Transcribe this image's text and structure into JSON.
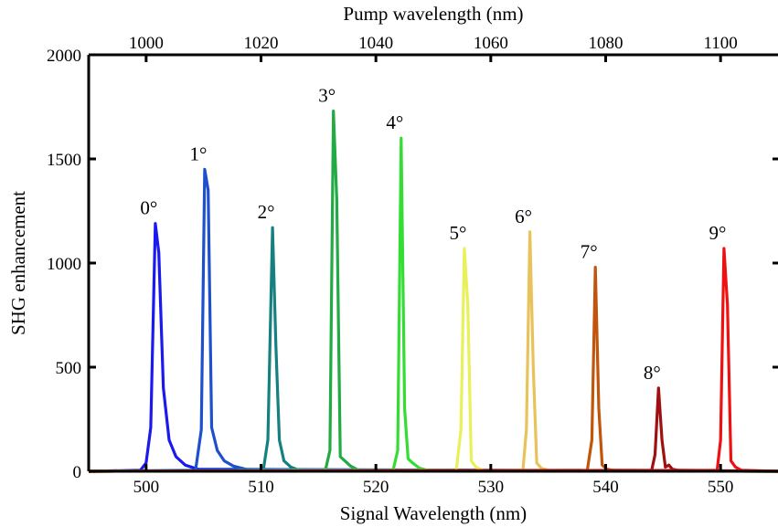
{
  "chart_data": {
    "type": "line",
    "title": "",
    "xlabel": "Signal Wavelength (nm)",
    "ylabel": "SHG enhancement",
    "x2label": "Pump wavelength (nm)",
    "xlim": [
      495,
      555
    ],
    "ylim": [
      0,
      2000
    ],
    "x2lim": [
      990,
      1110
    ],
    "xticks": [
      500,
      510,
      520,
      530,
      540,
      550
    ],
    "x2ticks": [
      1000,
      1020,
      1040,
      1060,
      1080,
      1100
    ],
    "yticks": [
      0,
      500,
      1000,
      1500,
      2000
    ],
    "grid": false,
    "legend": "none",
    "series": [
      {
        "label": "0°",
        "color": "#1a1aee",
        "x": [
          495,
          499.5,
          500.0,
          500.4,
          500.8,
          501.1,
          501.5,
          502.0,
          502.6,
          503.4,
          504.5,
          555
        ],
        "y": [
          0,
          5,
          40,
          210,
          1190,
          1050,
          400,
          150,
          70,
          30,
          10,
          0
        ]
      },
      {
        "label": "1°",
        "color": "#1e4fcc",
        "x": [
          495,
          504.3,
          504.8,
          505.1,
          505.4,
          505.7,
          506.2,
          506.8,
          507.6,
          508.8,
          555
        ],
        "y": [
          0,
          5,
          200,
          1450,
          1350,
          210,
          100,
          50,
          25,
          8,
          0
        ]
      },
      {
        "label": "2°",
        "color": "#168080",
        "x": [
          495,
          510.2,
          510.6,
          511.0,
          511.3,
          511.6,
          512.0,
          512.6,
          513.3,
          555
        ],
        "y": [
          0,
          5,
          150,
          1170,
          600,
          150,
          50,
          20,
          5,
          0
        ]
      },
      {
        "label": "3°",
        "color": "#22aa44",
        "x": [
          495,
          515.6,
          516.0,
          516.3,
          516.6,
          516.9,
          517.3,
          517.8,
          518.5,
          555
        ],
        "y": [
          0,
          5,
          100,
          1730,
          1300,
          70,
          50,
          25,
          5,
          0
        ]
      },
      {
        "label": "4°",
        "color": "#33dd33",
        "x": [
          495,
          521.5,
          521.9,
          522.2,
          522.5,
          522.8,
          523.2,
          523.8,
          524.5,
          555
        ],
        "y": [
          0,
          5,
          100,
          1600,
          300,
          60,
          40,
          15,
          5,
          0
        ]
      },
      {
        "label": "5°",
        "color": "#e8f05a",
        "x": [
          495,
          527.0,
          527.4,
          527.7,
          528.0,
          528.3,
          528.7,
          529.3,
          555
        ],
        "y": [
          0,
          5,
          200,
          1070,
          800,
          50,
          20,
          5,
          0
        ]
      },
      {
        "label": "6°",
        "color": "#e8c25a",
        "x": [
          495,
          532.8,
          533.1,
          533.4,
          533.7,
          534.0,
          534.4,
          535.0,
          555
        ],
        "y": [
          0,
          5,
          200,
          1150,
          500,
          40,
          15,
          5,
          0
        ]
      },
      {
        "label": "7°",
        "color": "#c0550c",
        "x": [
          495,
          538.4,
          538.8,
          539.1,
          539.4,
          539.7,
          540.1,
          540.6,
          555
        ],
        "y": [
          0,
          5,
          150,
          980,
          300,
          30,
          10,
          5,
          0
        ]
      },
      {
        "label": "8°",
        "color": "#a01010",
        "x": [
          495,
          544.0,
          544.3,
          544.6,
          544.9,
          545.2,
          545.5,
          545.8,
          546.3,
          555
        ],
        "y": [
          0,
          5,
          80,
          400,
          150,
          20,
          30,
          10,
          5,
          0
        ]
      },
      {
        "label": "9°",
        "color": "#ee1111",
        "x": [
          495,
          549.7,
          550.0,
          550.3,
          550.6,
          550.9,
          551.3,
          551.8,
          555
        ],
        "y": [
          0,
          5,
          150,
          1070,
          800,
          50,
          20,
          5,
          0
        ]
      }
    ]
  }
}
